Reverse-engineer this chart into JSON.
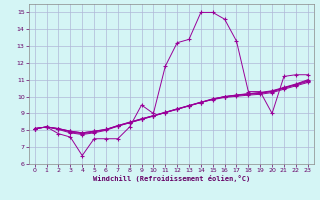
{
  "xlabel": "Windchill (Refroidissement éolien,°C)",
  "background_color": "#d4f5f5",
  "grid_color": "#b0b8d8",
  "line_color": "#990099",
  "xlim": [
    -0.5,
    23.5
  ],
  "ylim": [
    6,
    15.5
  ],
  "xticks": [
    0,
    1,
    2,
    3,
    4,
    5,
    6,
    7,
    8,
    9,
    10,
    11,
    12,
    13,
    14,
    15,
    16,
    17,
    18,
    19,
    20,
    21,
    22,
    23
  ],
  "yticks": [
    6,
    7,
    8,
    9,
    10,
    11,
    12,
    13,
    14,
    15
  ],
  "series": [
    [
      8.1,
      8.2,
      7.8,
      7.6,
      6.5,
      7.5,
      7.5,
      7.5,
      8.2,
      9.5,
      9.0,
      11.8,
      13.2,
      13.4,
      15.0,
      15.0,
      14.6,
      13.3,
      10.3,
      10.3,
      9.0,
      11.2,
      11.3,
      11.3
    ],
    [
      8.1,
      8.2,
      8.05,
      7.85,
      7.75,
      7.85,
      8.0,
      8.25,
      8.45,
      8.65,
      8.85,
      9.05,
      9.25,
      9.45,
      9.65,
      9.85,
      10.0,
      10.1,
      10.18,
      10.25,
      10.35,
      10.55,
      10.75,
      11.0
    ],
    [
      8.1,
      8.2,
      8.1,
      7.9,
      7.8,
      7.9,
      8.05,
      8.25,
      8.45,
      8.65,
      8.85,
      9.05,
      9.25,
      9.45,
      9.65,
      9.85,
      10.0,
      10.08,
      10.16,
      10.22,
      10.32,
      10.52,
      10.72,
      10.95
    ],
    [
      8.1,
      8.2,
      8.1,
      7.95,
      7.85,
      7.95,
      8.05,
      8.28,
      8.48,
      8.68,
      8.87,
      9.07,
      9.27,
      9.47,
      9.67,
      9.87,
      10.0,
      10.07,
      10.14,
      10.2,
      10.3,
      10.5,
      10.7,
      10.9
    ],
    [
      8.1,
      8.2,
      8.1,
      7.95,
      7.85,
      7.95,
      8.05,
      8.28,
      8.48,
      8.68,
      8.87,
      9.07,
      9.27,
      9.47,
      9.67,
      9.82,
      9.95,
      10.02,
      10.09,
      10.14,
      10.24,
      10.44,
      10.64,
      10.84
    ]
  ]
}
